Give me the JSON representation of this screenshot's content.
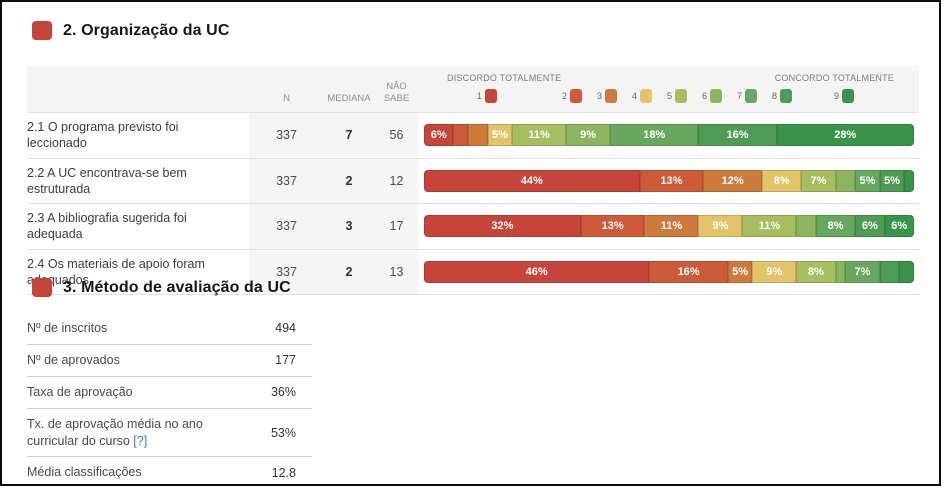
{
  "sections": {
    "organizacao": {
      "title": "2. Organização da UC"
    },
    "avaliacao": {
      "title": "3. Método de avaliação da UC"
    }
  },
  "accent_color": "#c2453a",
  "table": {
    "headers": {
      "n": "N",
      "mediana": "MEDIANA",
      "nao_sabe": "NÃO SABE"
    },
    "scale": {
      "left_label": "DISCORDO TOTALMENTE",
      "right_label": "CONCORDO TOTALMENTE",
      "points": [
        {
          "num": "1",
          "color": "#c5453b"
        },
        {
          "num": "2",
          "color": "#cd5b39"
        },
        {
          "num": "3",
          "color": "#cd7a3d"
        },
        {
          "num": "4",
          "color": "#e2c368"
        },
        {
          "num": "5",
          "color": "#a6bd60"
        },
        {
          "num": "6",
          "color": "#8bb55f"
        },
        {
          "num": "7",
          "color": "#66a85d"
        },
        {
          "num": "8",
          "color": "#4e9b53"
        },
        {
          "num": "9",
          "color": "#389448"
        }
      ]
    },
    "rows": [
      {
        "question": "2.1 O programa previsto foi leccionado",
        "n": "337",
        "mediana": "7",
        "nao_sabe": "56",
        "segments": [
          {
            "cat": 1,
            "pct": 6,
            "label": "6%"
          },
          {
            "cat": 2,
            "pct": 3,
            "label": ""
          },
          {
            "cat": 3,
            "pct": 4,
            "label": ""
          },
          {
            "cat": 4,
            "pct": 5,
            "label": "5%"
          },
          {
            "cat": 5,
            "pct": 11,
            "label": "11%"
          },
          {
            "cat": 6,
            "pct": 9,
            "label": "9%"
          },
          {
            "cat": 7,
            "pct": 18,
            "label": "18%"
          },
          {
            "cat": 8,
            "pct": 16,
            "label": "16%"
          },
          {
            "cat": 9,
            "pct": 28,
            "label": "28%"
          }
        ]
      },
      {
        "question": "2.2 A UC encontrava-se bem estruturada",
        "n": "337",
        "mediana": "2",
        "nao_sabe": "12",
        "segments": [
          {
            "cat": 1,
            "pct": 44,
            "label": "44%"
          },
          {
            "cat": 2,
            "pct": 13,
            "label": "13%"
          },
          {
            "cat": 3,
            "pct": 12,
            "label": "12%"
          },
          {
            "cat": 4,
            "pct": 8,
            "label": "8%"
          },
          {
            "cat": 5,
            "pct": 7,
            "label": "7%"
          },
          {
            "cat": 6,
            "pct": 4,
            "label": ""
          },
          {
            "cat": 7,
            "pct": 5,
            "label": "5%"
          },
          {
            "cat": 8,
            "pct": 5,
            "label": "5%"
          },
          {
            "cat": 9,
            "pct": 2,
            "label": ""
          }
        ]
      },
      {
        "question": "2.3 A bibliografia sugerida foi adequada",
        "n": "337",
        "mediana": "3",
        "nao_sabe": "17",
        "segments": [
          {
            "cat": 1,
            "pct": 32,
            "label": "32%"
          },
          {
            "cat": 2,
            "pct": 13,
            "label": "13%"
          },
          {
            "cat": 3,
            "pct": 11,
            "label": "11%"
          },
          {
            "cat": 4,
            "pct": 9,
            "label": "9%"
          },
          {
            "cat": 5,
            "pct": 11,
            "label": "11%"
          },
          {
            "cat": 6,
            "pct": 4,
            "label": ""
          },
          {
            "cat": 7,
            "pct": 8,
            "label": "8%"
          },
          {
            "cat": 8,
            "pct": 6,
            "label": "6%"
          },
          {
            "cat": 9,
            "pct": 6,
            "label": "6%"
          }
        ]
      },
      {
        "question": "2.4 Os materiais de apoio foram adequados",
        "n": "337",
        "mediana": "2",
        "nao_sabe": "13",
        "segments": [
          {
            "cat": 1,
            "pct": 46,
            "label": "46%"
          },
          {
            "cat": 2,
            "pct": 16,
            "label": "16%"
          },
          {
            "cat": 3,
            "pct": 5,
            "label": "5%"
          },
          {
            "cat": 4,
            "pct": 9,
            "label": "9%"
          },
          {
            "cat": 5,
            "pct": 8,
            "label": "8%"
          },
          {
            "cat": 6,
            "pct": 2,
            "label": ""
          },
          {
            "cat": 7,
            "pct": 7,
            "label": "7%"
          },
          {
            "cat": 8,
            "pct": 4,
            "label": ""
          },
          {
            "cat": 9,
            "pct": 3,
            "label": ""
          }
        ]
      }
    ]
  },
  "stats": {
    "rows": [
      {
        "label": "Nº de inscritos",
        "help": "",
        "value": "494"
      },
      {
        "label": "Nº de aprovados",
        "help": "",
        "value": "177"
      },
      {
        "label": "Taxa de aprovação",
        "help": "",
        "value": "36%"
      },
      {
        "label": "Tx. de aprovação média no ano curricular do curso",
        "help": "[?]",
        "value": "53%"
      },
      {
        "label": "Média classificações",
        "help": "",
        "value": "12.8"
      }
    ]
  },
  "chart_data": {
    "type": "bar",
    "stacked": true,
    "orientation": "horizontal",
    "title": "2. Organização da UC",
    "scale_labels": {
      "1": "Discordo totalmente",
      "9": "Concordo totalmente"
    },
    "categories": [
      "2.1 O programa previsto foi leccionado",
      "2.2 A UC encontrava-se bem estruturada",
      "2.3 A bibliografia sugerida foi adequada",
      "2.4 Os materiais de apoio foram adequados"
    ],
    "series": [
      {
        "name": "1",
        "values": [
          6,
          44,
          32,
          46
        ]
      },
      {
        "name": "2",
        "values": [
          3,
          13,
          13,
          16
        ]
      },
      {
        "name": "3",
        "values": [
          4,
          12,
          11,
          5
        ]
      },
      {
        "name": "4",
        "values": [
          5,
          8,
          9,
          9
        ]
      },
      {
        "name": "5",
        "values": [
          11,
          7,
          11,
          8
        ]
      },
      {
        "name": "6",
        "values": [
          9,
          4,
          4,
          2
        ]
      },
      {
        "name": "7",
        "values": [
          18,
          5,
          8,
          7
        ]
      },
      {
        "name": "8",
        "values": [
          16,
          5,
          6,
          4
        ]
      },
      {
        "name": "9",
        "values": [
          28,
          2,
          6,
          3
        ]
      }
    ],
    "xlim": [
      0,
      100
    ]
  }
}
